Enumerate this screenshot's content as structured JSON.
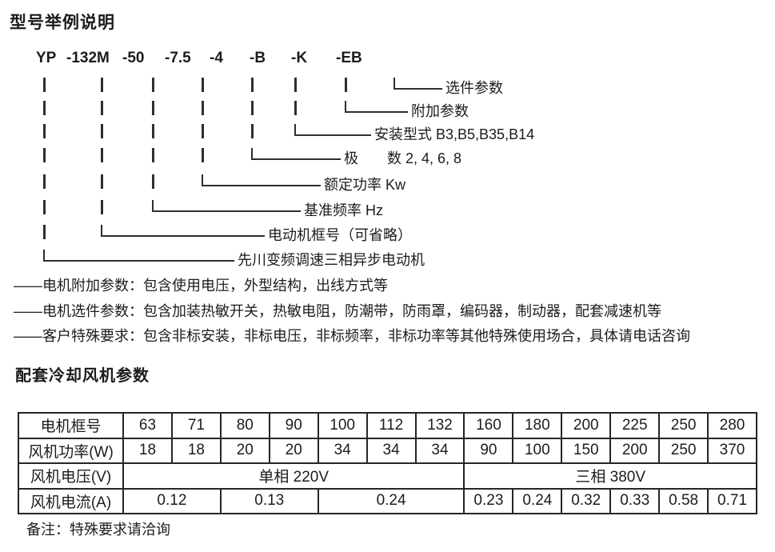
{
  "title": "型号举例说明",
  "model_example": {
    "segments": [
      "YP",
      "-132M",
      "-50",
      "-7.5",
      "-4",
      "-B",
      "-K",
      "-EB"
    ]
  },
  "ladder_labels": [
    "选件参数",
    "附加参数",
    "安装型式 B3,B5,B35,B14",
    "极　　数 2, 4, 6, 8",
    "额定功率 Kw",
    "基准频率 Hz",
    "电动机框号（可省略）",
    "先川变频调速三相异步电动机"
  ],
  "notes": [
    "——电机附加参数：包含使用电压，外型结构，出线方式等",
    "——电机选件参数：包含加装热敏开关，热敏电阻，防潮带，防雨罩，编码器，制动器，配套减速机等",
    "——客户特殊要求：包含非标安装，非标电压，非标频率，非标功率等其他特殊使用场合，具体请电话咨询"
  ],
  "fan_section": {
    "title": "配套冷却风机参数",
    "table": {
      "row_labels": [
        "电机框号",
        "风机功率(W)",
        "风机电压(V)",
        "风机电流(A)"
      ],
      "frame_sizes": [
        "63",
        "71",
        "80",
        "90",
        "100",
        "112",
        "132",
        "160",
        "180",
        "200",
        "225",
        "250",
        "280"
      ],
      "fan_power_w": [
        "18",
        "18",
        "20",
        "20",
        "34",
        "34",
        "34",
        "90",
        "100",
        "150",
        "200",
        "250",
        "370"
      ],
      "voltage": {
        "single_phase": "单相 220V",
        "three_phase": "三相 380V"
      },
      "current_a": [
        {
          "value": "0.12"
        },
        {
          "value": "0.13"
        },
        {
          "value": "0.24"
        },
        {
          "value": "0.23"
        },
        {
          "value": "0.24"
        },
        {
          "value": "0.32"
        },
        {
          "value": "0.33"
        },
        {
          "value": "0.58"
        },
        {
          "value": "0.71"
        }
      ]
    }
  },
  "footer_note": "备注：特殊要求请洽询"
}
